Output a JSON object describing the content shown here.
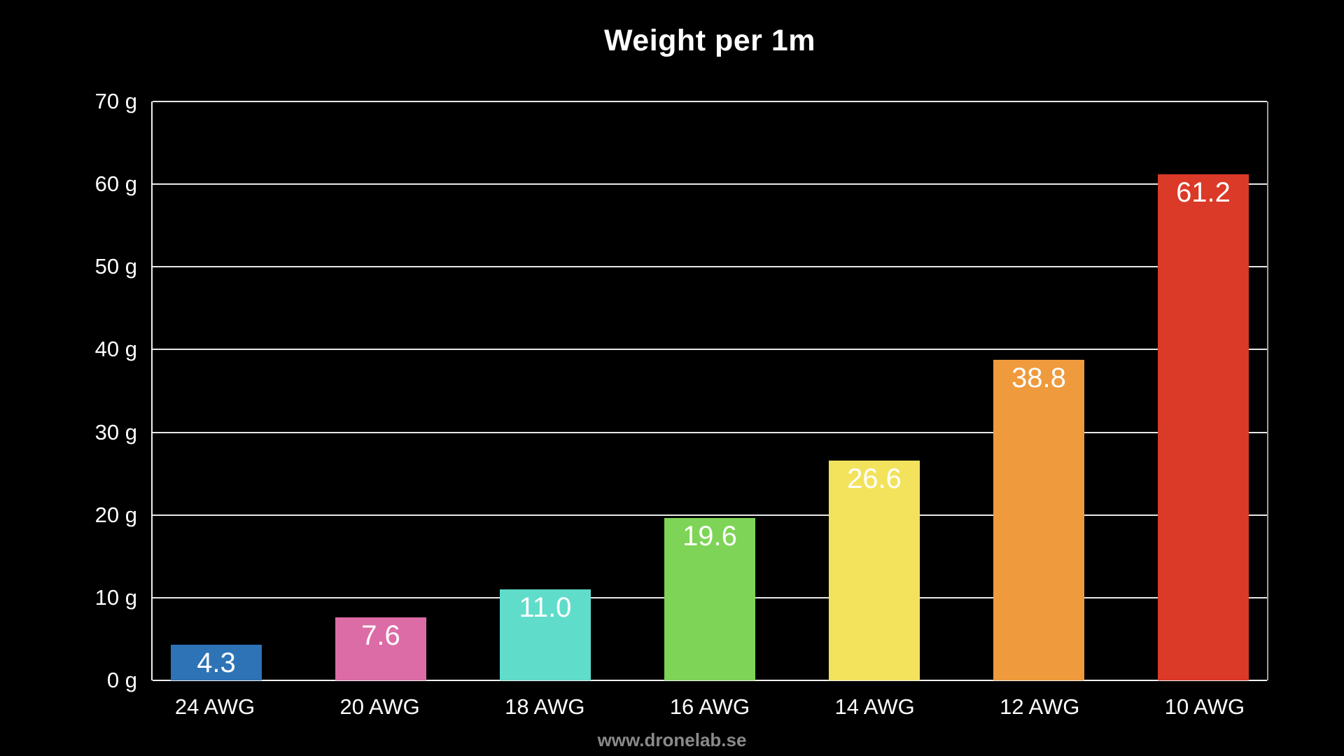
{
  "title": "Weight per 1m",
  "footer": "www.dronelab.se",
  "chart_data": {
    "type": "bar",
    "title": "Weight per 1m",
    "categories": [
      "24 AWG",
      "20 AWG",
      "18 AWG",
      "16 AWG",
      "14 AWG",
      "12 AWG",
      "10 AWG"
    ],
    "values": [
      4.3,
      7.6,
      11.0,
      19.6,
      26.6,
      38.8,
      61.2
    ],
    "value_labels": [
      "4.3",
      "7.6",
      "11.0",
      "19.6",
      "26.6",
      "38.8",
      "61.2"
    ],
    "bar_colors": [
      "#2e73b5",
      "#dc6ca6",
      "#60dccb",
      "#7ed456",
      "#f3e35c",
      "#ef9a3c",
      "#da3a27"
    ],
    "xlabel": "",
    "ylabel": "",
    "ylim": [
      0,
      70
    ],
    "ytick_step": 10,
    "ytick_labels": [
      "0 g",
      "10 g",
      "20 g",
      "30 g",
      "40 g",
      "50 g",
      "60 g",
      "70 g"
    ],
    "grid": "horizontal",
    "legend": "none",
    "background_color": "#000000",
    "text_color": "#ffffff",
    "grid_color": "#e8e8e8",
    "footer_color": "#8a8a8a"
  }
}
